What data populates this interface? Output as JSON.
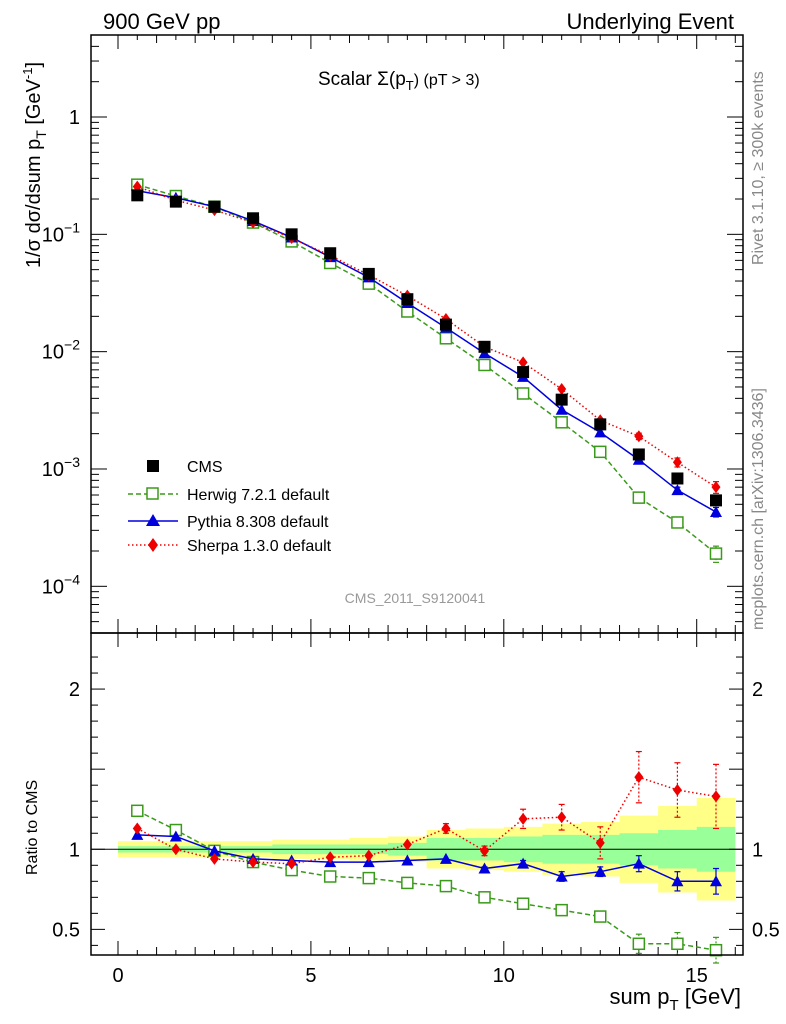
{
  "header": {
    "left": "900 GeV pp",
    "right": "Underlying Event"
  },
  "side_labels": {
    "top": "Rivet 3.1.10, ≥ 300k events",
    "bottom": "mcplots.cern.ch [arXiv:1306.3436]"
  },
  "watermark": "CMS_2011_S9120041",
  "colors": {
    "data": "#000000",
    "herwig": "#3a9a1a",
    "pythia": "#0000dd",
    "sherpa": "#ee0000",
    "band_outer": "#ffff88",
    "band_inner": "#99ff99"
  },
  "chart_data": [
    {
      "type": "line",
      "title_main": "Scalar ",
      "title_sigma": "Σ(p",
      "title_sub": "T",
      "title_tail": ") (pT >  3)",
      "ylabel_main": "1/σ dσ/dsum p",
      "ylabel_sub": "T",
      "ylabel_unit": " [GeV",
      "ylabel_exp": "-1",
      "ylabel_close": "]",
      "yscale": "log",
      "xlim": [
        -0.7,
        16.2
      ],
      "ylim": [
        4e-05,
        5
      ],
      "ytick_labels": [
        {
          "v": 1,
          "base": "1",
          "exp": ""
        },
        {
          "v": 0.1,
          "base": "10",
          "exp": "−1"
        },
        {
          "v": 0.01,
          "base": "10",
          "exp": "−2"
        },
        {
          "v": 0.001,
          "base": "10",
          "exp": "−3"
        },
        {
          "v": 0.0001,
          "base": "10",
          "exp": "−4"
        }
      ],
      "x": [
        0.5,
        1.5,
        2.5,
        3.5,
        4.5,
        5.5,
        6.5,
        7.5,
        8.5,
        9.5,
        10.5,
        11.5,
        12.5,
        13.5,
        14.5,
        15.5
      ],
      "data": {
        "name": "CMS",
        "values": [
          0.215,
          0.19,
          0.172,
          0.137,
          0.1,
          0.069,
          0.046,
          0.028,
          0.017,
          0.011,
          0.0067,
          0.0039,
          0.0024,
          0.00133,
          0.00083,
          0.00054
        ]
      },
      "series": [
        {
          "name": "Herwig 7.2.1 default",
          "key": "herwig",
          "values": [
            0.265,
            0.212,
            0.172,
            0.126,
            0.087,
            0.057,
            0.038,
            0.022,
            0.013,
            0.0077,
            0.0044,
            0.0025,
            0.0014,
            0.00057,
            0.00035,
            0.00019
          ],
          "err": [
            0,
            0,
            0,
            0,
            0,
            0,
            0,
            0,
            0,
            0,
            0,
            0,
            0,
            3e-05,
            3e-05,
            3e-05
          ]
        },
        {
          "name": "Pythia 8.308 default",
          "key": "pythia",
          "values": [
            0.235,
            0.205,
            0.172,
            0.13,
            0.094,
            0.064,
            0.043,
            0.026,
            0.016,
            0.0097,
            0.0061,
            0.0032,
            0.00205,
            0.0012,
            0.00066,
            0.00043
          ],
          "err": [
            0,
            0,
            0,
            0,
            0,
            0,
            0,
            0,
            0,
            0,
            0,
            0,
            0,
            0,
            4e-05,
            4e-05
          ]
        },
        {
          "name": "Sherpa 1.3.0 default",
          "key": "sherpa",
          "values": [
            0.255,
            0.195,
            0.161,
            0.126,
            0.093,
            0.066,
            0.045,
            0.03,
            0.019,
            0.011,
            0.0081,
            0.0048,
            0.0026,
            0.0019,
            0.00114,
            0.0007
          ],
          "err": [
            0,
            0,
            0,
            0,
            0,
            0,
            0,
            0,
            0,
            0,
            0,
            0,
            0,
            0.00012,
            0.0001,
            8e-05
          ]
        }
      ]
    },
    {
      "type": "line",
      "xlabel_main": "sum p",
      "xlabel_sub": "T",
      "xlabel_unit": " [GeV]",
      "ylabel": "Ratio to CMS",
      "xlim": [
        -0.7,
        16.2
      ],
      "ylim": [
        0.34,
        2.35
      ],
      "xticks": [
        0,
        5,
        10,
        15
      ],
      "xtick_labels": [
        "0",
        "5",
        "10",
        "15"
      ],
      "ytick_labels": [
        {
          "v": 2,
          "label": "2"
        },
        {
          "v": 1,
          "label": "1"
        },
        {
          "v": 0.5,
          "label": "0.5"
        }
      ],
      "band_outer": [
        0.05,
        0.05,
        0.05,
        0.05,
        0.06,
        0.06,
        0.07,
        0.08,
        0.12,
        0.13,
        0.14,
        0.16,
        0.17,
        0.21,
        0.27,
        0.32
      ],
      "band_inner": [
        0.02,
        0.02,
        0.02,
        0.02,
        0.03,
        0.03,
        0.03,
        0.04,
        0.07,
        0.07,
        0.08,
        0.09,
        0.09,
        0.1,
        0.12,
        0.14
      ],
      "series": [
        {
          "name": "Herwig 7.2.1 default",
          "key": "herwig",
          "values": [
            1.24,
            1.12,
            0.99,
            0.92,
            0.87,
            0.83,
            0.82,
            0.79,
            0.77,
            0.7,
            0.66,
            0.62,
            0.58,
            0.41,
            0.41,
            0.37
          ],
          "err": [
            0,
            0,
            0,
            0,
            0,
            0,
            0,
            0,
            0,
            0.01,
            0.02,
            0.02,
            0.03,
            0.06,
            0.07,
            0.08
          ]
        },
        {
          "name": "Pythia 8.308 default",
          "key": "pythia",
          "values": [
            1.09,
            1.08,
            0.99,
            0.94,
            0.93,
            0.92,
            0.92,
            0.93,
            0.94,
            0.88,
            0.91,
            0.83,
            0.86,
            0.91,
            0.8,
            0.8
          ],
          "err": [
            0,
            0,
            0,
            0,
            0,
            0,
            0,
            0,
            0,
            0.01,
            0.02,
            0.03,
            0.03,
            0.05,
            0.06,
            0.08
          ]
        },
        {
          "name": "Sherpa 1.3.0 default",
          "key": "sherpa",
          "values": [
            1.13,
            1.0,
            0.94,
            0.92,
            0.91,
            0.95,
            0.96,
            1.03,
            1.13,
            0.99,
            1.19,
            1.2,
            1.04,
            1.45,
            1.37,
            1.33
          ],
          "err": [
            0,
            0,
            0,
            0,
            0,
            0,
            0,
            0,
            0.03,
            0.03,
            0.06,
            0.08,
            0.1,
            0.16,
            0.17,
            0.2
          ]
        }
      ]
    }
  ]
}
